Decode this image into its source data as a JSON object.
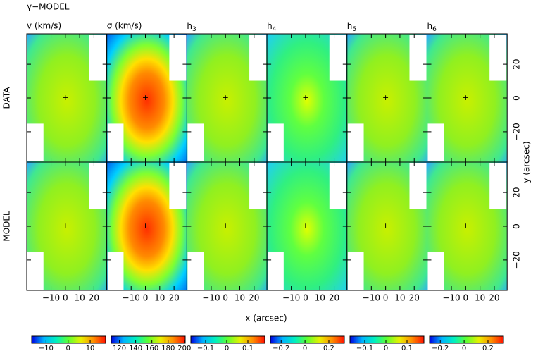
{
  "chart_data": {
    "type": "map-grid",
    "title": "γ−MODEL",
    "rows": [
      "DATA",
      "MODEL"
    ],
    "columns": [
      {
        "label": "v (km/s)",
        "cbar_lim": [
          -16.5,
          17
        ],
        "cbar_ticks": [
          {
            "value": -10,
            "label": "−10"
          },
          0,
          10
        ]
      },
      {
        "label": "σ (km/s)",
        "cbar_lim": [
          110,
          201
        ],
        "cbar_ticks": [
          120,
          140,
          160,
          180,
          200
        ]
      },
      {
        "label": {
          "text": "h",
          "sub": "3"
        },
        "cbar_lim": [
          -0.17,
          0.18
        ],
        "cbar_ticks": [
          {
            "value": -0.1,
            "label": "−0.1"
          },
          0,
          0.1
        ]
      },
      {
        "label": {
          "text": "h",
          "sub": "4"
        },
        "cbar_lim": [
          -0.29,
          0.33
        ],
        "cbar_ticks": [
          {
            "value": -0.2,
            "label": "−0.2"
          },
          0,
          0.2
        ]
      },
      {
        "label": {
          "text": "h",
          "sub": "5"
        },
        "cbar_lim": [
          -0.17,
          0.18
        ],
        "cbar_ticks": [
          {
            "value": -0.1,
            "label": "−0.1"
          },
          0,
          0.1
        ]
      },
      {
        "label": {
          "text": "h",
          "sub": "6"
        },
        "cbar_lim": [
          -0.29,
          0.33
        ],
        "cbar_ticks": [
          {
            "value": -0.2,
            "label": "−0.2"
          },
          0,
          0.2
        ]
      }
    ],
    "xlabel": "x (arcsec)",
    "ylabel": "y (arcsec)",
    "xlim": [
      -27,
      29
    ],
    "xticks": [
      {
        "value": -10,
        "label": "−10"
      },
      0,
      10,
      20
    ],
    "ylim": [
      -38,
      38
    ],
    "yticks": [
      {
        "value": -20,
        "label": "−20"
      },
      0,
      20
    ],
    "colormap": [
      "#0000e0",
      "#00b4ff",
      "#00f0c0",
      "#60ff30",
      "#e8f000",
      "#ff9000",
      "#ff1000"
    ]
  }
}
